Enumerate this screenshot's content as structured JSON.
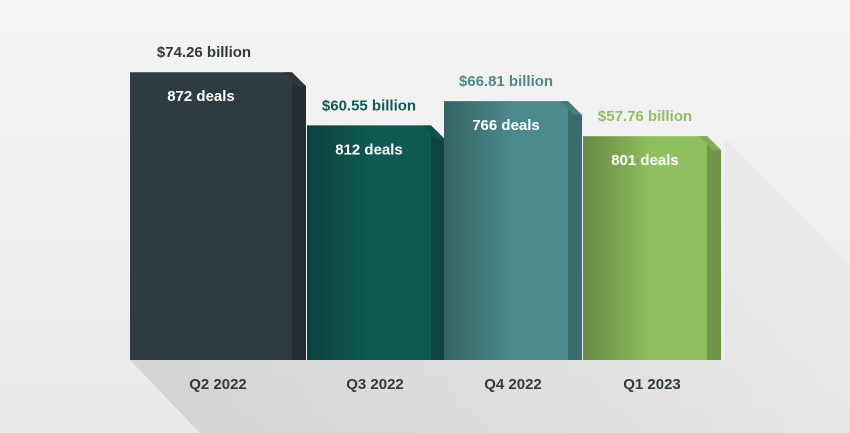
{
  "chart_data": {
    "type": "bar",
    "title": "",
    "xlabel": "",
    "ylabel": "",
    "categories": [
      "Q2 2022",
      "Q3 2022",
      "Q4 2022",
      "Q1 2023"
    ],
    "series": [
      {
        "name": "",
        "values": [
          74.26,
          60.55,
          66.81,
          57.76
        ],
        "value_labels": [
          "$74.26 billion",
          "$60.55 billion",
          "$66.81 billion",
          "$57.76 billion"
        ],
        "deal_labels": [
          "872 deals",
          "812 deals",
          "766 deals",
          "801 deals"
        ]
      }
    ],
    "colors": [
      "#2e3b40",
      "#0f5a55",
      "#4b8a8c",
      "#8fbf5e"
    ],
    "value_label_colors": [
      "#2e3b40",
      "#0f5a55",
      "#4b8a8c",
      "#8fbf5e"
    ],
    "grid": false,
    "legend": "none"
  }
}
